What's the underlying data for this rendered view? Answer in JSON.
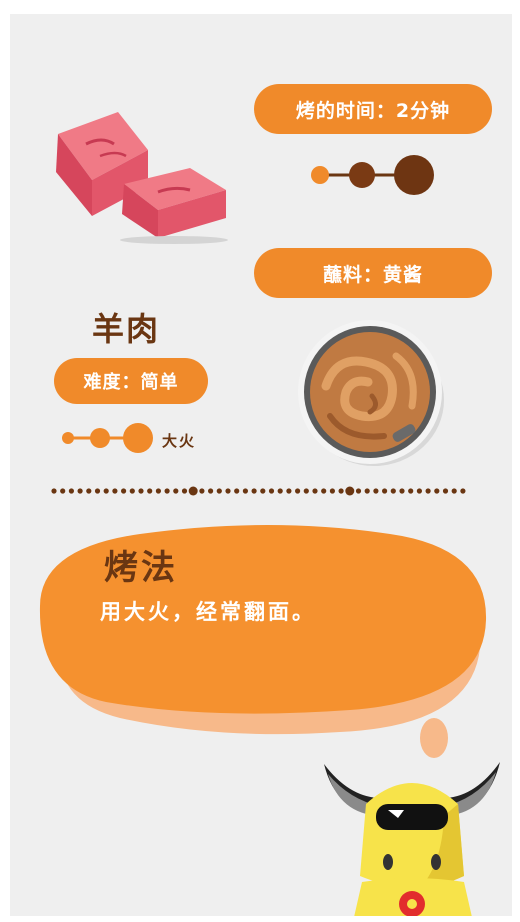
{
  "cooking": {
    "time_label": "烤的时间：2分钟",
    "sauce_label": "蘸料：黄酱",
    "meat_name": "羊肉",
    "difficulty_label": "难度：简单",
    "heat_label": "大火"
  },
  "method": {
    "title": "烤法",
    "text": "用大火，经常翻面。"
  },
  "colors": {
    "accent": "#f08a2a",
    "brown": "#6a3612",
    "background": "#efefef"
  }
}
